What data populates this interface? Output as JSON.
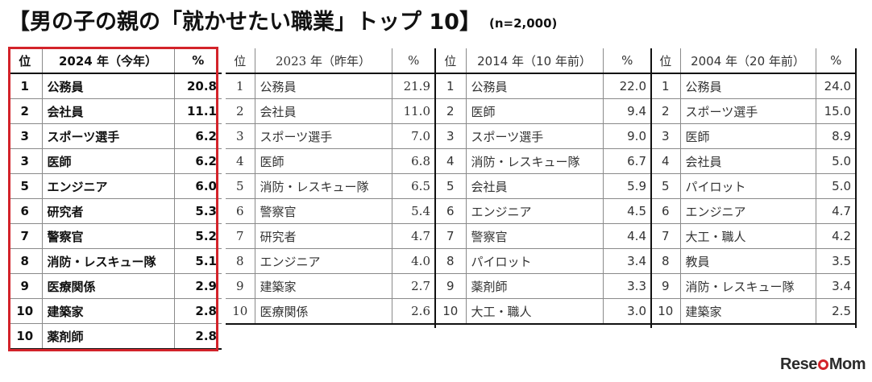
{
  "title": "【男の子の親の「就かせたい職業」トップ 10】",
  "sample": "(n=2,000)",
  "logo": "ReseMom",
  "tables": [
    {
      "id": "t2024",
      "headers": [
        "位",
        "2024 年（今年）",
        "%"
      ],
      "rows": [
        [
          "1",
          "公務員",
          "20.8"
        ],
        [
          "2",
          "会社員",
          "11.1"
        ],
        [
          "3",
          "スポーツ選手",
          "6.2"
        ],
        [
          "3",
          "医師",
          "6.2"
        ],
        [
          "5",
          "エンジニア",
          "6.0"
        ],
        [
          "6",
          "研究者",
          "5.3"
        ],
        [
          "7",
          "警察官",
          "5.2"
        ],
        [
          "8",
          "消防・レスキュー隊",
          "5.1"
        ],
        [
          "9",
          "医療関係",
          "2.9"
        ],
        [
          "10",
          "建築家",
          "2.8"
        ],
        [
          "10",
          "薬剤師",
          "2.8"
        ]
      ]
    },
    {
      "id": "t2023",
      "headers": [
        "位",
        "2023 年（昨年）",
        "%"
      ],
      "rows": [
        [
          "1",
          "公務員",
          "21.9"
        ],
        [
          "2",
          "会社員",
          "11.0"
        ],
        [
          "3",
          "スポーツ選手",
          "7.0"
        ],
        [
          "4",
          "医師",
          "6.8"
        ],
        [
          "5",
          "消防・レスキュー隊",
          "6.5"
        ],
        [
          "6",
          "警察官",
          "5.4"
        ],
        [
          "7",
          "研究者",
          "4.7"
        ],
        [
          "8",
          "エンジニア",
          "4.0"
        ],
        [
          "9",
          "建築家",
          "2.7"
        ],
        [
          "10",
          "医療関係",
          "2.6"
        ]
      ]
    },
    {
      "id": "t2014",
      "headers": [
        "位",
        "2014 年（10 年前）",
        "%"
      ],
      "rows": [
        [
          "1",
          "公務員",
          "22.0"
        ],
        [
          "2",
          "医師",
          "9.4"
        ],
        [
          "3",
          "スポーツ選手",
          "9.0"
        ],
        [
          "4",
          "消防・レスキュー隊",
          "6.7"
        ],
        [
          "5",
          "会社員",
          "5.9"
        ],
        [
          "6",
          "エンジニア",
          "4.5"
        ],
        [
          "7",
          "警察官",
          "4.4"
        ],
        [
          "8",
          "パイロット",
          "3.4"
        ],
        [
          "9",
          "薬剤師",
          "3.3"
        ],
        [
          "10",
          "大工・職人",
          "3.0"
        ]
      ]
    },
    {
      "id": "t2004",
      "headers": [
        "位",
        "2004 年（20 年前）",
        "%"
      ],
      "rows": [
        [
          "1",
          "公務員",
          "24.0"
        ],
        [
          "2",
          "スポーツ選手",
          "15.0"
        ],
        [
          "3",
          "医師",
          "8.9"
        ],
        [
          "4",
          "会社員",
          "5.0"
        ],
        [
          "5",
          "パイロット",
          "5.0"
        ],
        [
          "6",
          "エンジニア",
          "4.7"
        ],
        [
          "7",
          "大工・職人",
          "4.2"
        ],
        [
          "8",
          "教員",
          "3.5"
        ],
        [
          "9",
          "消防・レスキュー隊",
          "3.4"
        ],
        [
          "10",
          "建築家",
          "2.5"
        ]
      ]
    }
  ]
}
